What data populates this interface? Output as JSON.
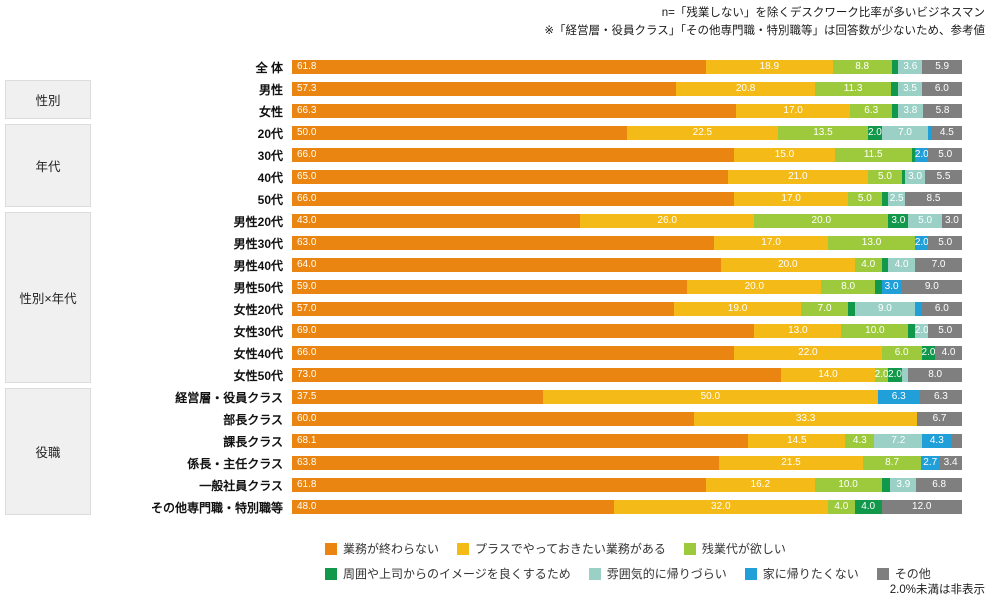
{
  "notes": {
    "line1": "n=「残業しない」を除くデスクワーク比率が多いビジネスマン",
    "line2": "※「経営層・役員クラス」「その他専門職・特別職等」は回答数が少ないため、参考値"
  },
  "footnote": "2.0%未満は非表示",
  "chart_data": {
    "type": "bar",
    "subtype": "horizontal-stacked",
    "unit": "%",
    "xlim": [
      0,
      100
    ],
    "value_labels_min": 2.0,
    "legend_position": "bottom",
    "series": [
      {
        "name": "業務が終わらない",
        "color": "#EA8511"
      },
      {
        "name": "プラスでやっておきたい業務がある",
        "color": "#F3BA18"
      },
      {
        "name": "残業代が欲しい",
        "color": "#9DCA3C"
      },
      {
        "name": "周囲や上司からのイメージを良くするため",
        "color": "#11984B"
      },
      {
        "name": "雰囲気的に帰りづらい",
        "color": "#9AD0C6"
      },
      {
        "name": "家に帰りたくない",
        "color": "#209FD9"
      },
      {
        "name": "その他",
        "color": "#7F7F7F"
      }
    ],
    "rows": [
      {
        "label": "全 体",
        "bold": true,
        "values": [
          61.8,
          18.9,
          8.8,
          1.0,
          3.6,
          0,
          5.9
        ]
      },
      {
        "label": "男性",
        "values": [
          57.3,
          20.8,
          11.3,
          1.1,
          3.5,
          0,
          6.0
        ]
      },
      {
        "label": "女性",
        "values": [
          66.3,
          17.0,
          6.3,
          0.8,
          3.8,
          0,
          5.8
        ]
      },
      {
        "label": "20代",
        "values": [
          50.0,
          22.5,
          13.5,
          2.0,
          7.0,
          0.5,
          4.5
        ]
      },
      {
        "label": "30代",
        "values": [
          66.0,
          15.0,
          11.5,
          0.5,
          0,
          2.0,
          5.0
        ]
      },
      {
        "label": "40代",
        "values": [
          65.0,
          21.0,
          5.0,
          0.5,
          3.0,
          0,
          5.5
        ]
      },
      {
        "label": "50代",
        "values": [
          66.0,
          17.0,
          5.0,
          1.0,
          2.5,
          0,
          8.5
        ]
      },
      {
        "label": "男性20代",
        "values": [
          43.0,
          26.0,
          20.0,
          3.0,
          5.0,
          0,
          3.0
        ]
      },
      {
        "label": "男性30代",
        "values": [
          63.0,
          17.0,
          13.0,
          0,
          0,
          2.0,
          5.0
        ]
      },
      {
        "label": "男性40代",
        "values": [
          64.0,
          20.0,
          4.0,
          1.0,
          4.0,
          0,
          7.0
        ]
      },
      {
        "label": "男性50代",
        "values": [
          59.0,
          20.0,
          8.0,
          1.0,
          0,
          3.0,
          9.0
        ]
      },
      {
        "label": "女性20代",
        "values": [
          57.0,
          19.0,
          7.0,
          1.0,
          9.0,
          1.0,
          6.0
        ]
      },
      {
        "label": "女性30代",
        "values": [
          69.0,
          13.0,
          10.0,
          1.0,
          2.0,
          0,
          5.0
        ]
      },
      {
        "label": "女性40代",
        "values": [
          66.0,
          22.0,
          6.0,
          2.0,
          0,
          0,
          4.0
        ]
      },
      {
        "label": "女性50代",
        "values": [
          73.0,
          14.0,
          2.0,
          2.0,
          1.0,
          0,
          8.0
        ]
      },
      {
        "label": "経営層・役員クラス",
        "values": [
          37.5,
          50.0,
          0,
          0,
          0,
          6.3,
          6.3
        ]
      },
      {
        "label": "部長クラス",
        "values": [
          60.0,
          33.3,
          0,
          0,
          0,
          0,
          6.7
        ]
      },
      {
        "label": "課長クラス",
        "values": [
          68.1,
          14.5,
          4.3,
          0,
          7.2,
          4.3,
          1.6
        ]
      },
      {
        "label": "係長・主任クラス",
        "values": [
          63.8,
          21.5,
          8.7,
          0,
          0,
          2.7,
          3.4
        ]
      },
      {
        "label": "一般社員クラス",
        "values": [
          61.8,
          16.2,
          10.0,
          1.3,
          3.9,
          0,
          6.8
        ]
      },
      {
        "label": "その他専門職・特別職等",
        "values": [
          48.0,
          32.0,
          4.0,
          4.0,
          0,
          0,
          12.0
        ]
      }
    ],
    "groups": [
      {
        "label": "性別",
        "start_row": 1,
        "row_span": 2
      },
      {
        "label": "年代",
        "start_row": 3,
        "row_span": 4
      },
      {
        "label": "性別×年代",
        "start_row": 7,
        "row_span": 8
      },
      {
        "label": "役職",
        "start_row": 15,
        "row_span": 6
      }
    ]
  }
}
